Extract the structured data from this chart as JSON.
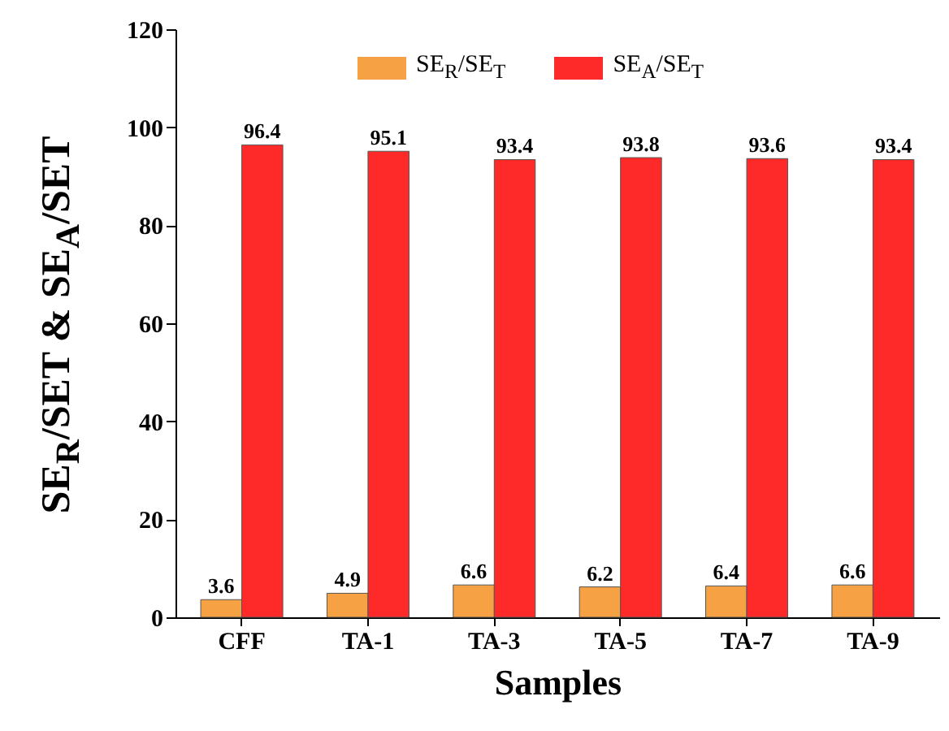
{
  "chart_data": {
    "type": "bar",
    "xlabel": "Samples",
    "ylabel": "SE$_{R}$/SET & SE$_{A}$/SET",
    "categories": [
      "CFF",
      "TA-1",
      "TA-3",
      "TA-5",
      "TA-7",
      "TA-9"
    ],
    "series": [
      {
        "name": "SE$_{R}$/SE$_{T}$",
        "color": "#f6a244",
        "values": [
          3.6,
          4.9,
          6.6,
          6.2,
          6.4,
          6.6
        ]
      },
      {
        "name": "SE$_{A}$/SE$_{T}$",
        "color": "#fe2a2a",
        "values": [
          96.4,
          95.1,
          93.4,
          93.8,
          93.6,
          93.4
        ]
      }
    ],
    "ylim": [
      0,
      120
    ],
    "yticks": [
      0,
      20,
      40,
      60,
      80,
      100,
      120
    ],
    "grid": false,
    "legend": "top",
    "data_labels": true
  }
}
